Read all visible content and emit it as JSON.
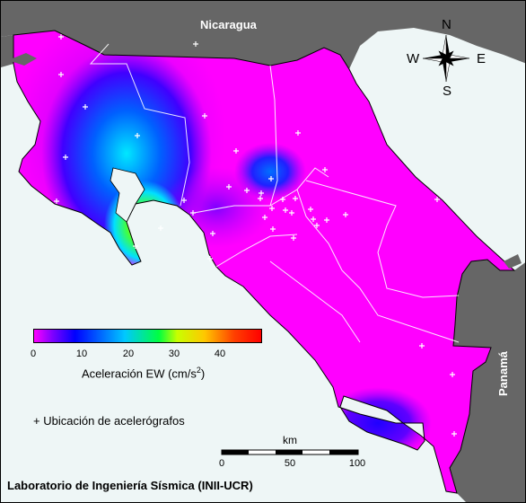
{
  "map": {
    "labels": {
      "north_country": "Nicaragua",
      "south_country": "Panamá"
    },
    "compass": {
      "n": "N",
      "s": "S",
      "e": "E",
      "w": "W"
    },
    "colorbar": {
      "title_prefix": "Aceleración EW (cm/s",
      "title_sup": "2",
      "title_suffix": ")",
      "ticks": [
        "0",
        "10",
        "20",
        "30",
        "40"
      ],
      "range": [
        0,
        50
      ],
      "colors": [
        "#ff00ff",
        "#8000ff",
        "#0000ff",
        "#00c8ff",
        "#00ff40",
        "#c8ff00",
        "#ffc800",
        "#ff4000",
        "#ff0000"
      ]
    },
    "legend": {
      "symbol": "+",
      "text": "Ubicación de acelerógrafos"
    },
    "scale": {
      "title": "km",
      "ticks": [
        "0",
        "50",
        "100"
      ]
    },
    "footer": "Laboratorio de Ingeniería Sísmica (INII-UCR)",
    "colors": {
      "land_grey": "#666666",
      "sea": "#eef6f6"
    }
  }
}
